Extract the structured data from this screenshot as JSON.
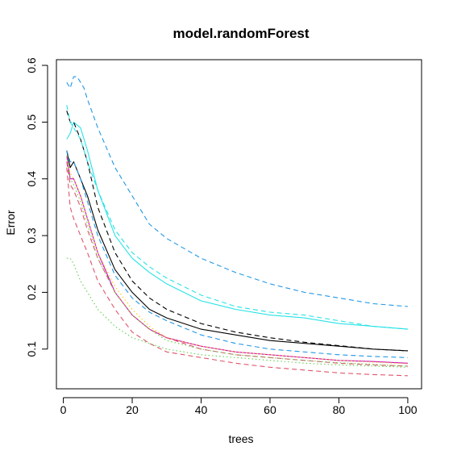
{
  "chart_data": {
    "type": "line",
    "title": "model.randomForest",
    "xlabel": "trees",
    "ylabel": "Error",
    "xlim": [
      -2,
      104
    ],
    "ylim": [
      0.03,
      0.61
    ],
    "x_ticks": [
      0,
      20,
      40,
      60,
      80,
      100
    ],
    "y_ticks": [
      0.1,
      0.2,
      0.3,
      0.4,
      0.5,
      0.6
    ],
    "x_tick_labels": [
      "0",
      "20",
      "40",
      "60",
      "80",
      "100"
    ],
    "y_tick_labels": [
      "0.1",
      "0.2",
      "0.3",
      "0.4",
      "0.5",
      "0.6"
    ],
    "grid": false,
    "legend": "none",
    "series": [
      {
        "color": "#000000",
        "dash": "solid",
        "x": [
          1,
          2,
          3,
          5,
          7,
          10,
          15,
          20,
          25,
          30,
          40,
          50,
          60,
          70,
          80,
          90,
          100
        ],
        "values": [
          0.45,
          0.42,
          0.43,
          0.4,
          0.37,
          0.31,
          0.24,
          0.2,
          0.17,
          0.155,
          0.135,
          0.125,
          0.115,
          0.11,
          0.105,
          0.1,
          0.097
        ]
      },
      {
        "color": "#DF536B",
        "dash": "dashed",
        "x": [
          1,
          2,
          3,
          5,
          7,
          10,
          15,
          20,
          25,
          30,
          40,
          50,
          60,
          70,
          80,
          90,
          100
        ],
        "values": [
          0.42,
          0.35,
          0.33,
          0.3,
          0.27,
          0.22,
          0.17,
          0.13,
          0.11,
          0.095,
          0.085,
          0.075,
          0.068,
          0.063,
          0.058,
          0.055,
          0.053
        ]
      },
      {
        "color": "#61D04F",
        "dash": "dotted",
        "x": [
          1,
          2,
          3,
          5,
          7,
          10,
          15,
          20,
          25,
          30,
          40,
          50,
          60,
          70,
          80,
          90,
          100
        ],
        "values": [
          0.26,
          0.26,
          0.25,
          0.22,
          0.2,
          0.17,
          0.14,
          0.12,
          0.11,
          0.1,
          0.09,
          0.085,
          0.08,
          0.075,
          0.072,
          0.07,
          0.068
        ]
      },
      {
        "color": "#2297E6",
        "dash": "dashed",
        "x": [
          1,
          2,
          3,
          4,
          5,
          6,
          7,
          10,
          15,
          20,
          25,
          30,
          40,
          50,
          60,
          70,
          80,
          90,
          100
        ],
        "values": [
          0.57,
          0.56,
          0.58,
          0.58,
          0.57,
          0.56,
          0.54,
          0.49,
          0.42,
          0.37,
          0.32,
          0.295,
          0.26,
          0.235,
          0.215,
          0.2,
          0.19,
          0.18,
          0.175
        ]
      },
      {
        "color": "#28E2E5",
        "dash": "solid",
        "x": [
          1,
          2,
          3,
          5,
          7,
          10,
          15,
          20,
          25,
          30,
          40,
          50,
          60,
          70,
          80,
          90,
          100
        ],
        "values": [
          0.47,
          0.48,
          0.5,
          0.49,
          0.45,
          0.38,
          0.3,
          0.26,
          0.235,
          0.215,
          0.185,
          0.17,
          0.16,
          0.155,
          0.145,
          0.14,
          0.135
        ]
      },
      {
        "color": "#CD0BBC",
        "dash": "solid",
        "x": [
          1,
          2,
          3,
          5,
          7,
          10,
          15,
          20,
          25,
          30,
          40,
          50,
          60,
          70,
          80,
          90,
          100
        ],
        "values": [
          0.44,
          0.4,
          0.4,
          0.37,
          0.33,
          0.27,
          0.2,
          0.16,
          0.135,
          0.12,
          0.105,
          0.095,
          0.09,
          0.085,
          0.08,
          0.078,
          0.075
        ]
      },
      {
        "color": "#F5C710",
        "dash": "dotted",
        "x": [
          1,
          2,
          3,
          5,
          7,
          10,
          15,
          20,
          25,
          30,
          40,
          50,
          60,
          70,
          80,
          90,
          100
        ],
        "values": [
          0.44,
          0.41,
          0.4,
          0.37,
          0.33,
          0.27,
          0.21,
          0.17,
          0.14,
          0.12,
          0.105,
          0.095,
          0.09,
          0.085,
          0.08,
          0.077,
          0.074
        ]
      },
      {
        "color": "#000000",
        "dash": "dashed",
        "x": [
          1,
          2,
          3,
          5,
          7,
          10,
          15,
          20,
          25,
          30,
          40,
          50,
          60,
          70,
          80,
          90,
          100
        ],
        "values": [
          0.52,
          0.5,
          0.5,
          0.47,
          0.43,
          0.35,
          0.27,
          0.22,
          0.19,
          0.17,
          0.145,
          0.13,
          0.12,
          0.112,
          0.106,
          0.1,
          0.097
        ]
      },
      {
        "color": "#DF536B",
        "dash": "dashed",
        "x": [
          1,
          2,
          3,
          5,
          7,
          10,
          15,
          20,
          25,
          30,
          40,
          50,
          60,
          70,
          80,
          90,
          100
        ],
        "values": [
          0.43,
          0.39,
          0.38,
          0.35,
          0.31,
          0.26,
          0.2,
          0.16,
          0.135,
          0.12,
          0.1,
          0.09,
          0.085,
          0.08,
          0.075,
          0.072,
          0.07
        ]
      },
      {
        "color": "#61D04F",
        "dash": "dotted",
        "x": [
          1,
          2,
          3,
          5,
          7,
          10,
          15,
          20,
          25,
          30,
          40,
          50,
          60,
          70,
          80,
          90,
          100
        ],
        "values": [
          0.44,
          0.4,
          0.39,
          0.36,
          0.32,
          0.26,
          0.2,
          0.16,
          0.135,
          0.115,
          0.1,
          0.09,
          0.085,
          0.08,
          0.076,
          0.073,
          0.07
        ]
      },
      {
        "color": "#2297E6",
        "dash": "dashed",
        "x": [
          1,
          2,
          3,
          5,
          7,
          10,
          15,
          20,
          25,
          30,
          40,
          50,
          60,
          70,
          80,
          90,
          100
        ],
        "values": [
          0.45,
          0.43,
          0.43,
          0.4,
          0.36,
          0.3,
          0.23,
          0.19,
          0.165,
          0.15,
          0.125,
          0.11,
          0.1,
          0.095,
          0.09,
          0.087,
          0.085
        ]
      },
      {
        "color": "#28E2E5",
        "dash": "dashed",
        "x": [
          1,
          2,
          3,
          5,
          7,
          10,
          15,
          20,
          25,
          30,
          40,
          50,
          60,
          70,
          80,
          90,
          100
        ],
        "values": [
          0.53,
          0.5,
          0.49,
          0.47,
          0.43,
          0.38,
          0.31,
          0.27,
          0.245,
          0.225,
          0.195,
          0.175,
          0.165,
          0.16,
          0.15,
          0.14,
          0.135
        ]
      }
    ]
  }
}
